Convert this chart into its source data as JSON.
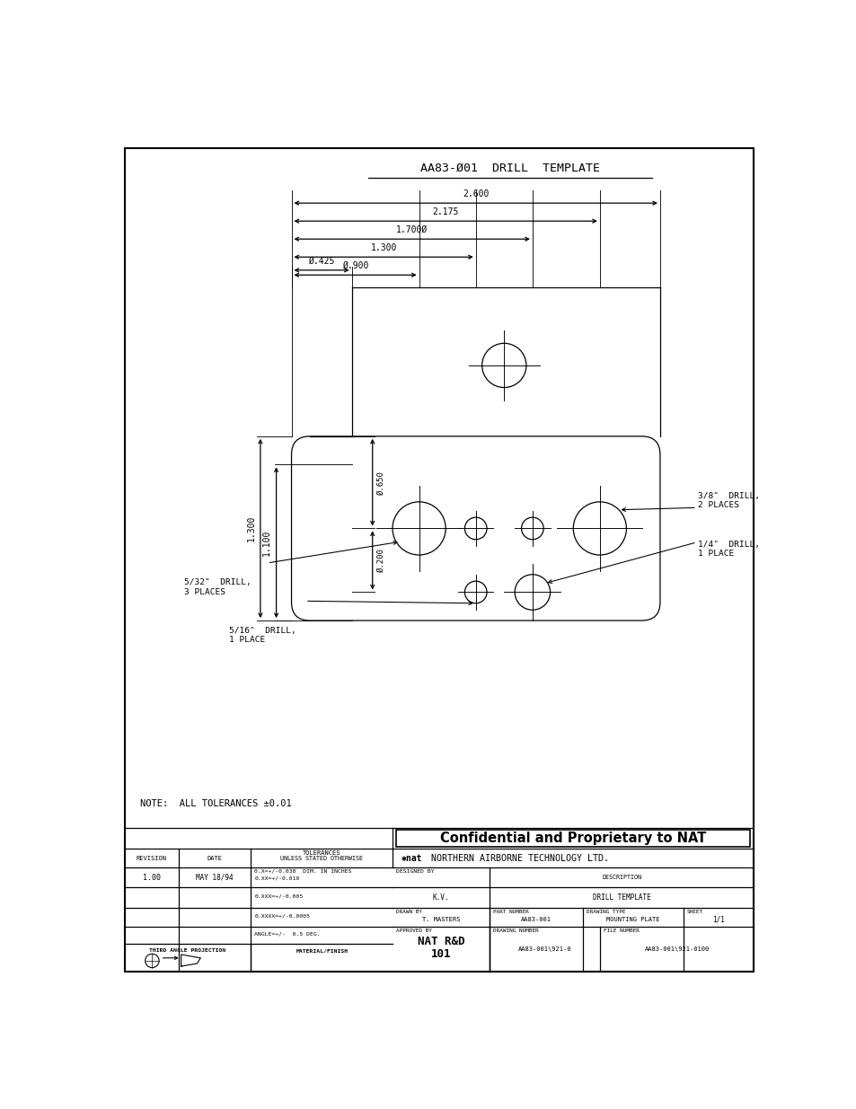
{
  "bg_color": "#ffffff",
  "line_color": "#000000",
  "fig_width": 9.54,
  "fig_height": 12.35,
  "note_text": "NOTE:  ALL TOLERANCES ±0.01",
  "confidential_text": "Confidential and Proprietary to NAT",
  "title": "AA83-Ø01  DRILL  TEMPLATE",
  "company": "NORTHERN AIRBORNE TECHNOLOGY LTD.",
  "revision": "1.00",
  "date": "MAY 18/94",
  "tol1": "0.X=+/-0.030  DIM. IN INCHES",
  "tol2": "0.XX=+/-0.010",
  "tol3": "0.XXX=+/-0.005",
  "tol4": "0.XXXX=+/-0.0005",
  "tol5": "ANGLE=+/-  0.5 DEG.",
  "designed_by": "K.V.",
  "description": "DRILL TEMPLATE",
  "drawn_by": "T. MASTERS",
  "part_number": "AA83-001",
  "drawing_type": "MOUNTING PLATE",
  "sheet": "1/1",
  "approved_by": "NAT R&D\n101",
  "drawing_number": "AA83-001\\921-0",
  "file_number": "AA83-001\\921-0100"
}
